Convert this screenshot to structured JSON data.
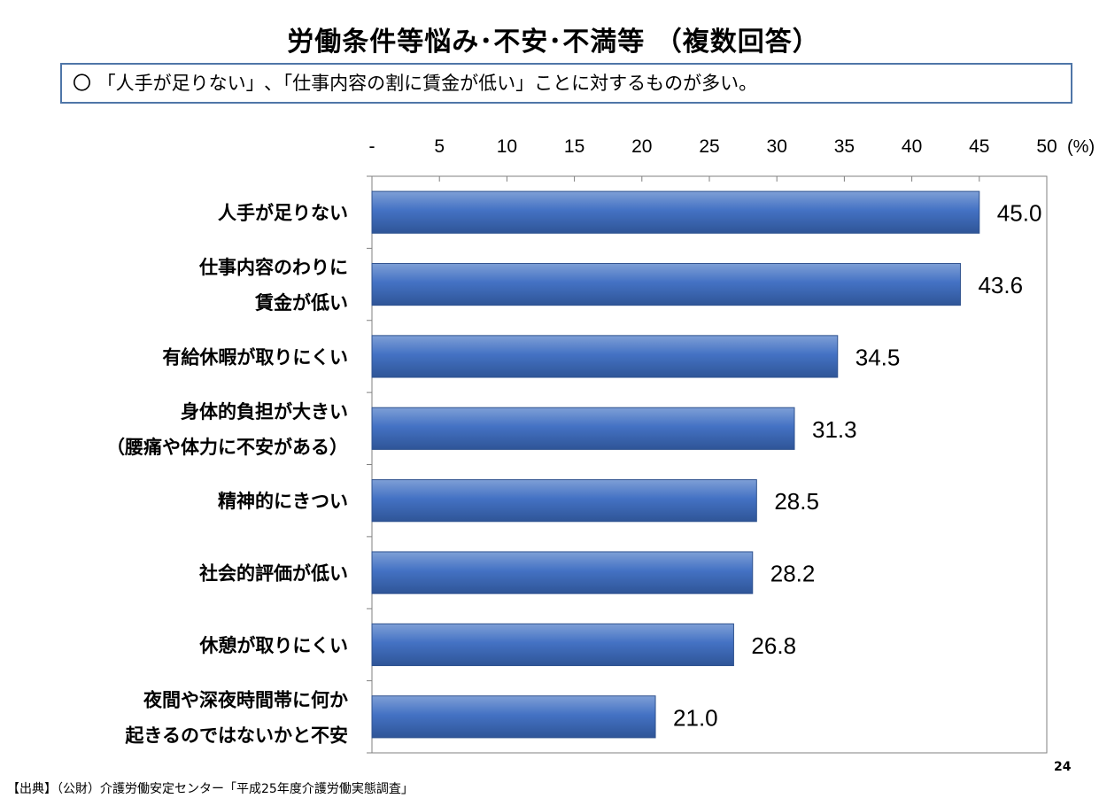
{
  "title": "労働条件等悩み･不安･不満等 （複数回答）",
  "summary": "〇 「人手が足りない」､「仕事内容の割に賃金が低い」ことに対するものが多い。",
  "source": "【出典】（公財）介護労働安定センター「平成25年度介護労働実態調査」",
  "page_number": "24",
  "bar_color": "#4472c4",
  "chart_data": {
    "type": "bar",
    "orientation": "horizontal",
    "xlim": [
      0,
      50
    ],
    "ticks": [
      0,
      5,
      10,
      15,
      20,
      25,
      30,
      35,
      40,
      45,
      50
    ],
    "tick_labels": [
      "-",
      "5",
      "10",
      "15",
      "20",
      "25",
      "30",
      "35",
      "40",
      "45",
      "50"
    ],
    "unit": "(%)",
    "grid": false,
    "categories": [
      [
        "人手が足りない"
      ],
      [
        "仕事内容のわりに",
        "賃金が低い"
      ],
      [
        "有給休暇が取りにくい"
      ],
      [
        "身体的負担が大きい",
        "（腰痛や体力に不安がある）"
      ],
      [
        "精神的にきつい"
      ],
      [
        "社会的評価が低い"
      ],
      [
        "休憩が取りにくい"
      ],
      [
        "夜間や深夜時間帯に何か",
        "起きるのではないかと不安"
      ]
    ],
    "values": [
      45.0,
      43.6,
      34.5,
      31.3,
      28.5,
      28.2,
      26.8,
      21.0
    ],
    "data_labels": [
      "45.0",
      "43.6",
      "34.5",
      "31.3",
      "28.5",
      "28.2",
      "26.8",
      "21.0"
    ]
  }
}
